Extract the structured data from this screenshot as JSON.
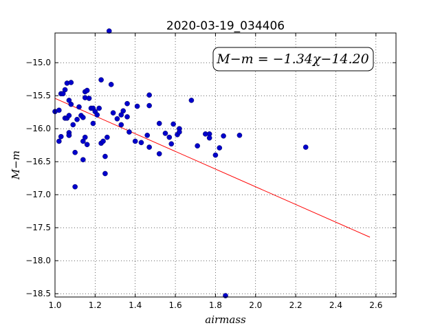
{
  "chart_data": {
    "type": "scatter",
    "title": "2020-03-19_034406",
    "xlabel": "airmass",
    "ylabel": "M−m",
    "xlim": [
      1.0,
      2.7
    ],
    "ylim": [
      -18.55,
      -14.55
    ],
    "y_inverted": true,
    "xticks": [
      1.0,
      1.2,
      1.4,
      1.6,
      1.8,
      2.0,
      2.2,
      2.4,
      2.6
    ],
    "xtick_labels": [
      "1.0",
      "1.2",
      "1.4",
      "1.6",
      "1.8",
      "2.0",
      "2.2",
      "2.4",
      "2.6"
    ],
    "yticks": [
      -15.0,
      -15.5,
      -16.0,
      -16.5,
      -17.0,
      -17.5,
      -18.0,
      -18.5
    ],
    "ytick_labels": [
      "−15.0",
      "−15.5",
      "−16.0",
      "−16.5",
      "−17.0",
      "−17.5",
      "−18.0",
      "−18.5"
    ],
    "grid": true,
    "annotation": "M−m = −1.34χ−14.20",
    "colors": {
      "points": "#0000cc",
      "fit": "#ff0000"
    },
    "fit_line": {
      "slope": -1.34,
      "intercept": -14.2,
      "x_range": [
        1.0,
        2.57
      ]
    },
    "points": {
      "x": [
        1.0,
        1.02,
        1.02,
        1.03,
        1.03,
        1.04,
        1.05,
        1.05,
        1.06,
        1.06,
        1.07,
        1.07,
        1.07,
        1.07,
        1.07,
        1.08,
        1.08,
        1.09,
        1.1,
        1.1,
        1.11,
        1.12,
        1.13,
        1.14,
        1.14,
        1.14,
        1.15,
        1.15,
        1.15,
        1.16,
        1.16,
        1.17,
        1.18,
        1.19,
        1.19,
        1.2,
        1.21,
        1.22,
        1.23,
        1.23,
        1.24,
        1.25,
        1.25,
        1.26,
        1.27,
        1.28,
        1.29,
        1.31,
        1.33,
        1.33,
        1.34,
        1.36,
        1.36,
        1.37,
        1.4,
        1.41,
        1.43,
        1.46,
        1.47,
        1.47,
        1.47,
        1.52,
        1.52,
        1.55,
        1.57,
        1.58,
        1.59,
        1.61,
        1.62,
        1.62,
        1.68,
        1.71,
        1.75,
        1.77,
        1.77,
        1.8,
        1.82,
        1.84,
        1.85,
        1.92,
        2.25
      ],
      "y": [
        -15.74,
        -15.72,
        -16.19,
        -15.47,
        -16.12,
        -15.47,
        -15.41,
        -15.84,
        -15.31,
        -15.84,
        -15.57,
        -16.06,
        -16.1,
        -16.1,
        -15.8,
        -15.3,
        -15.63,
        -15.94,
        -16.36,
        -16.88,
        -15.86,
        -15.67,
        -15.8,
        -15.83,
        -16.19,
        -16.47,
        -15.44,
        -16.13,
        -15.53,
        -16.24,
        -15.42,
        -15.54,
        -15.69,
        -15.69,
        -15.92,
        -15.74,
        -15.79,
        -15.69,
        -16.22,
        -15.26,
        -16.19,
        -16.42,
        -16.68,
        -16.13,
        -14.52,
        -15.33,
        -15.76,
        -15.85,
        -15.79,
        -15.94,
        -15.73,
        -15.62,
        -15.82,
        -16.05,
        -16.19,
        -15.66,
        -16.21,
        -16.1,
        -16.28,
        -15.49,
        -15.65,
        -16.38,
        -15.92,
        -16.07,
        -16.13,
        -16.23,
        -15.93,
        -16.09,
        -16.0,
        -16.05,
        -15.57,
        -16.26,
        -16.08,
        -16.08,
        -16.14,
        -16.4,
        -16.29,
        -16.11,
        -18.53,
        -16.1,
        -16.28
      ]
    }
  }
}
